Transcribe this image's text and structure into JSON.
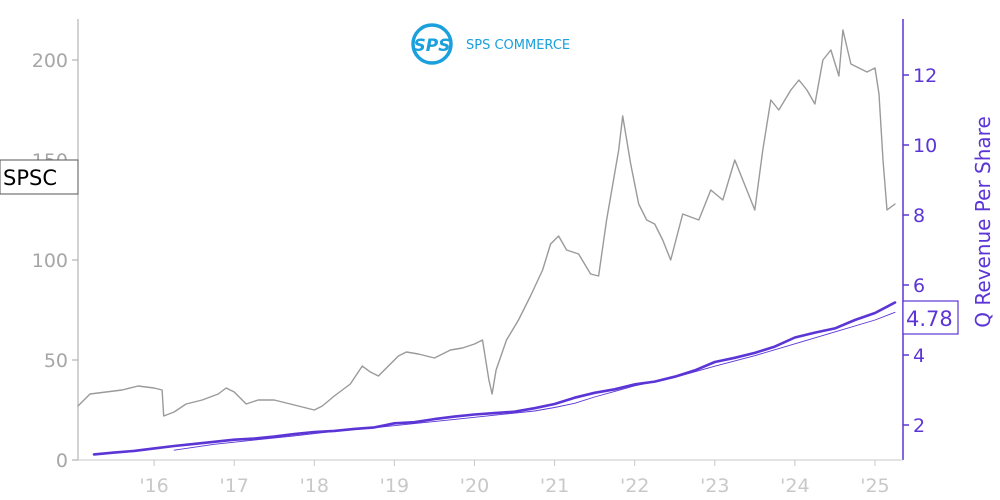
{
  "logo": {
    "brand_text": "SPS COMMERCE",
    "mark_text": "SPS",
    "color": "#1aa0dc"
  },
  "ticker_label": "SPSC",
  "current_value_label": "4.78",
  "colors": {
    "price": "#9a9a9a",
    "revenue": "#5b35d5",
    "left_axis": "#a6a6a6",
    "x_axis": "#c8c8c8"
  },
  "chart_data": {
    "type": "line",
    "title": "",
    "xlabel": "",
    "ylabel_left": "",
    "ylabel_right": "Q Revenue Per Share",
    "x_tick_labels": [
      "'16",
      "'17",
      "'18",
      "'19",
      "'20",
      "'21",
      "'22",
      "'23",
      "'24",
      "'25"
    ],
    "x_tick_years": [
      2016,
      2017,
      2018,
      2019,
      2020,
      2021,
      2022,
      2023,
      2024,
      2025
    ],
    "xlim": [
      2015.05,
      2025.35
    ],
    "ylim_left": [
      0,
      220
    ],
    "left_ticks": [
      0,
      50,
      100,
      150,
      200
    ],
    "ylim_right": [
      1.0,
      13.0
    ],
    "right_ticks": [
      2,
      4,
      6,
      8,
      10,
      12
    ],
    "series": [
      {
        "name": "SPSC",
        "axis": "left",
        "x": [
          2015.05,
          2015.2,
          2015.4,
          2015.6,
          2015.8,
          2016.0,
          2016.1,
          2016.12,
          2016.25,
          2016.4,
          2016.6,
          2016.8,
          2016.9,
          2017.0,
          2017.1,
          2017.15,
          2017.3,
          2017.5,
          2017.7,
          2017.9,
          2018.0,
          2018.1,
          2018.25,
          2018.45,
          2018.6,
          2018.7,
          2018.8,
          2018.95,
          2019.05,
          2019.15,
          2019.3,
          2019.5,
          2019.7,
          2019.85,
          2020.0,
          2020.1,
          2020.18,
          2020.22,
          2020.27,
          2020.4,
          2020.55,
          2020.7,
          2020.85,
          2020.95,
          2021.05,
          2021.15,
          2021.3,
          2021.45,
          2021.55,
          2021.65,
          2021.8,
          2021.85,
          2021.95,
          2022.05,
          2022.15,
          2022.25,
          2022.35,
          2022.45,
          2022.6,
          2022.8,
          2022.95,
          2023.1,
          2023.25,
          2023.4,
          2023.5,
          2023.6,
          2023.7,
          2023.8,
          2023.95,
          2024.05,
          2024.15,
          2024.25,
          2024.35,
          2024.45,
          2024.55,
          2024.6,
          2024.7,
          2024.8,
          2024.9,
          2025.0,
          2025.05,
          2025.1,
          2025.15,
          2025.25
        ],
        "y": [
          27,
          33,
          34,
          35,
          37,
          36,
          35,
          22,
          24,
          28,
          30,
          33,
          36,
          34,
          30,
          28,
          30,
          30,
          28,
          26,
          25,
          27,
          32,
          38,
          47,
          44,
          42,
          48,
          52,
          54,
          53,
          51,
          55,
          56,
          58,
          60,
          40,
          33,
          45,
          60,
          70,
          82,
          95,
          108,
          112,
          105,
          103,
          93,
          92,
          120,
          155,
          172,
          148,
          128,
          120,
          118,
          110,
          100,
          123,
          120,
          135,
          130,
          150,
          135,
          125,
          155,
          180,
          175,
          185,
          190,
          185,
          178,
          200,
          205,
          192,
          215,
          198,
          196,
          194,
          196,
          183,
          150,
          125,
          128
        ]
      },
      {
        "name": "Q Revenue Per Share",
        "axis": "right",
        "x": [
          2015.25,
          2015.5,
          2015.75,
          2016.0,
          2016.25,
          2016.5,
          2016.75,
          2017.0,
          2017.25,
          2017.5,
          2017.75,
          2018.0,
          2018.25,
          2018.5,
          2018.75,
          2019.0,
          2019.25,
          2019.5,
          2019.75,
          2020.0,
          2020.25,
          2020.5,
          2020.75,
          2021.0,
          2021.25,
          2021.5,
          2021.75,
          2022.0,
          2022.25,
          2022.5,
          2022.75,
          2023.0,
          2023.25,
          2023.5,
          2023.75,
          2024.0,
          2024.25,
          2024.5,
          2024.75,
          2025.0,
          2025.25
        ],
        "y": [
          1.16,
          1.21,
          1.26,
          1.33,
          1.4,
          1.46,
          1.52,
          1.58,
          1.61,
          1.67,
          1.74,
          1.8,
          1.83,
          1.89,
          1.93,
          2.05,
          2.08,
          2.17,
          2.24,
          2.3,
          2.34,
          2.38,
          2.48,
          2.6,
          2.78,
          2.92,
          3.02,
          3.16,
          3.24,
          3.38,
          3.56,
          3.8,
          3.92,
          4.06,
          4.24,
          4.5,
          4.64,
          4.76,
          5.0,
          5.2,
          5.5
        ]
      },
      {
        "name": "",
        "axis": "right",
        "x": [
          2016.25,
          2016.75,
          2017.25,
          2017.75,
          2018.25,
          2018.75,
          2019.25,
          2019.75,
          2020.25,
          2020.75,
          2021.0,
          2021.25,
          2021.5,
          2021.75,
          2022.0,
          2022.5,
          2023.0,
          2023.5,
          2024.0,
          2024.5,
          2025.0,
          2025.25
        ],
        "y": [
          1.28,
          1.45,
          1.57,
          1.69,
          1.82,
          1.92,
          2.04,
          2.16,
          2.28,
          2.4,
          2.5,
          2.62,
          2.8,
          2.96,
          3.12,
          3.36,
          3.68,
          3.98,
          4.32,
          4.66,
          5.0,
          5.22
        ]
      }
    ]
  }
}
